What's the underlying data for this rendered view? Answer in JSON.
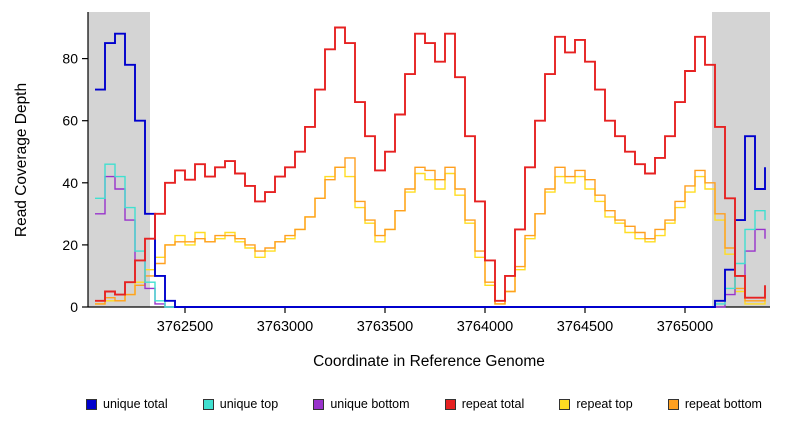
{
  "chart_data": {
    "type": "line",
    "title": "",
    "xlabel": "Coordinate in Reference Genome",
    "ylabel": "Read Coverage Depth",
    "xlim": [
      3762015,
      3765425
    ],
    "ylim": [
      0,
      95
    ],
    "x_ticks": [
      3762500,
      3763000,
      3763500,
      3764000,
      3764500,
      3765000
    ],
    "y_ticks": [
      0,
      20,
      40,
      60,
      80
    ],
    "grid": false,
    "legend_position": "bottom",
    "step_interpolation": true,
    "draw_order": [
      4,
      5,
      2,
      1,
      0,
      3
    ],
    "shaded_regions": [
      {
        "x0": 3762015,
        "x1": 3762325,
        "color": "#d4d4d4"
      },
      {
        "x0": 3765135,
        "x1": 3765425,
        "color": "#d4d4d4"
      }
    ],
    "x": [
      3762050,
      3762100,
      3762150,
      3762200,
      3762250,
      3762300,
      3762350,
      3762400,
      3762450,
      3762500,
      3762550,
      3762600,
      3762650,
      3762700,
      3762750,
      3762800,
      3762850,
      3762900,
      3762950,
      3763000,
      3763050,
      3763100,
      3763150,
      3763200,
      3763250,
      3763300,
      3763350,
      3763400,
      3763450,
      3763500,
      3763550,
      3763600,
      3763650,
      3763700,
      3763750,
      3763800,
      3763850,
      3763900,
      3763950,
      3764000,
      3764050,
      3764100,
      3764150,
      3764200,
      3764250,
      3764300,
      3764350,
      3764400,
      3764450,
      3764500,
      3764550,
      3764600,
      3764650,
      3764700,
      3764750,
      3764800,
      3764850,
      3764900,
      3764950,
      3765000,
      3765050,
      3765100,
      3765150,
      3765200,
      3765250,
      3765300,
      3765350,
      3765400
    ],
    "series": [
      {
        "name": "unique total",
        "color": "#0000cd",
        "line_width": 1.9,
        "values": [
          70,
          85,
          88,
          78,
          60,
          30,
          10,
          2,
          0,
          0,
          0,
          0,
          0,
          0,
          0,
          0,
          0,
          0,
          0,
          0,
          0,
          0,
          0,
          0,
          0,
          0,
          0,
          0,
          0,
          0,
          0,
          0,
          0,
          0,
          0,
          0,
          0,
          0,
          0,
          0,
          0,
          0,
          0,
          0,
          0,
          0,
          0,
          0,
          0,
          0,
          0,
          0,
          0,
          0,
          0,
          0,
          0,
          0,
          0,
          0,
          0,
          0,
          2,
          12,
          28,
          55,
          38,
          45
        ]
      },
      {
        "name": "unique top",
        "color": "#40e0d0",
        "line_width": 1.4,
        "values": [
          35,
          46,
          42,
          32,
          18,
          8,
          2,
          0,
          0,
          0,
          0,
          0,
          0,
          0,
          0,
          0,
          0,
          0,
          0,
          0,
          0,
          0,
          0,
          0,
          0,
          0,
          0,
          0,
          0,
          0,
          0,
          0,
          0,
          0,
          0,
          0,
          0,
          0,
          0,
          0,
          0,
          0,
          0,
          0,
          0,
          0,
          0,
          0,
          0,
          0,
          0,
          0,
          0,
          0,
          0,
          0,
          0,
          0,
          0,
          0,
          0,
          0,
          1,
          6,
          14,
          25,
          31,
          28
        ]
      },
      {
        "name": "unique bottom",
        "color": "#9933cc",
        "line_width": 1.4,
        "values": [
          30,
          42,
          38,
          28,
          15,
          6,
          1,
          0,
          0,
          0,
          0,
          0,
          0,
          0,
          0,
          0,
          0,
          0,
          0,
          0,
          0,
          0,
          0,
          0,
          0,
          0,
          0,
          0,
          0,
          0,
          0,
          0,
          0,
          0,
          0,
          0,
          0,
          0,
          0,
          0,
          0,
          0,
          0,
          0,
          0,
          0,
          0,
          0,
          0,
          0,
          0,
          0,
          0,
          0,
          0,
          0,
          0,
          0,
          0,
          0,
          0,
          0,
          0,
          4,
          10,
          18,
          25,
          22
        ]
      },
      {
        "name": "repeat total",
        "color": "#e62222",
        "line_width": 1.9,
        "values": [
          2,
          5,
          4,
          8,
          15,
          22,
          30,
          40,
          44,
          41,
          46,
          42,
          45,
          47,
          43,
          39,
          34,
          37,
          42,
          45,
          50,
          58,
          70,
          83,
          90,
          85,
          66,
          55,
          44,
          50,
          62,
          75,
          88,
          85,
          79,
          88,
          74,
          55,
          34,
          15,
          2,
          10,
          25,
          45,
          60,
          75,
          87,
          82,
          86,
          79,
          70,
          60,
          55,
          50,
          46,
          43,
          48,
          55,
          66,
          76,
          87,
          78,
          58,
          35,
          10,
          3,
          3,
          7
        ]
      },
      {
        "name": "repeat top",
        "color": "#ffdd22",
        "line_width": 1.4,
        "values": [
          1,
          2,
          2,
          4,
          8,
          12,
          16,
          20,
          23,
          20,
          24,
          21,
          22,
          24,
          21,
          19,
          16,
          18,
          21,
          22,
          25,
          29,
          35,
          42,
          45,
          42,
          32,
          27,
          21,
          25,
          31,
          37,
          43,
          41,
          38,
          43,
          36,
          27,
          16,
          7,
          1,
          5,
          12,
          22,
          30,
          37,
          42,
          40,
          42,
          38,
          34,
          29,
          27,
          24,
          22,
          21,
          23,
          27,
          32,
          37,
          42,
          38,
          28,
          17,
          5,
          1,
          1,
          3
        ]
      },
      {
        "name": "repeat bottom",
        "color": "#ffa020",
        "line_width": 1.4,
        "values": [
          1,
          3,
          2,
          4,
          7,
          10,
          14,
          20,
          21,
          21,
          22,
          21,
          23,
          23,
          22,
          20,
          18,
          19,
          21,
          23,
          25,
          29,
          35,
          41,
          45,
          48,
          34,
          28,
          23,
          25,
          31,
          38,
          45,
          44,
          41,
          45,
          38,
          28,
          18,
          8,
          1,
          5,
          13,
          23,
          30,
          38,
          45,
          42,
          44,
          41,
          36,
          31,
          28,
          26,
          24,
          22,
          25,
          28,
          34,
          39,
          44,
          40,
          30,
          19,
          6,
          2,
          2,
          4
        ]
      }
    ]
  }
}
